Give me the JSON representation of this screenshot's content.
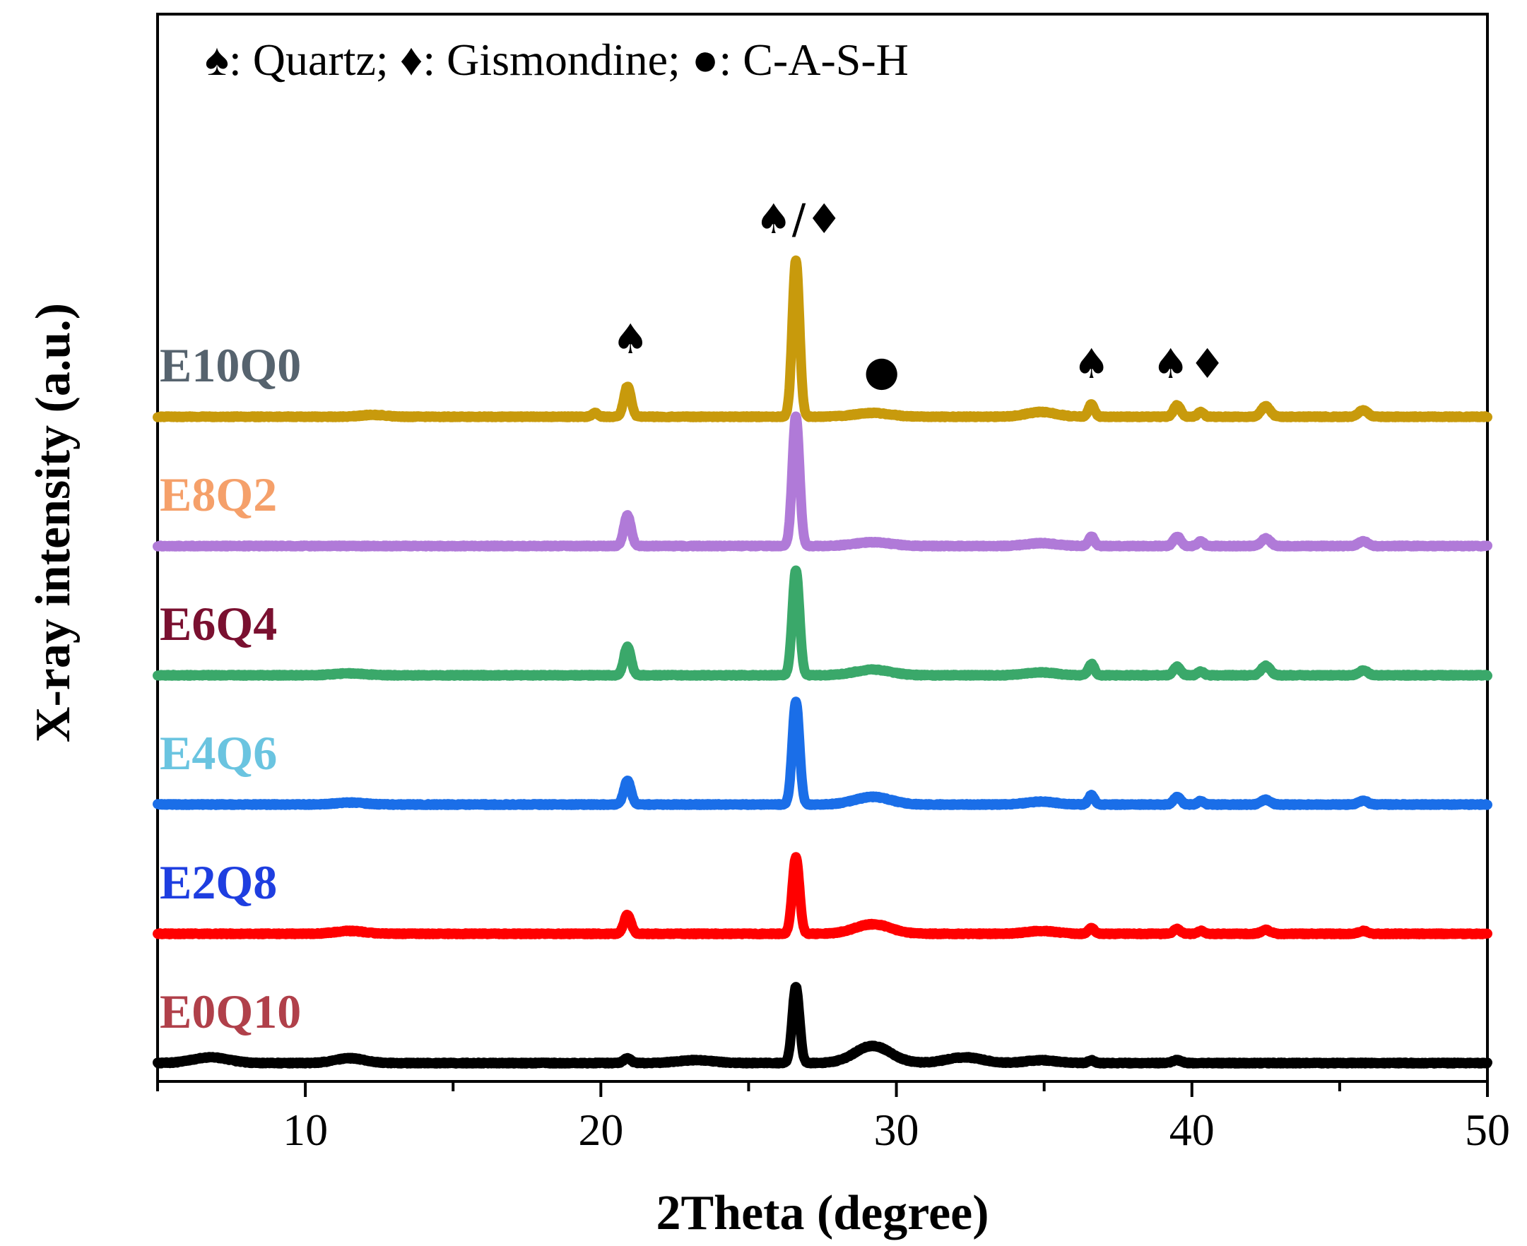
{
  "chart_data": {
    "type": "line",
    "title": "",
    "xlabel": "2Theta (degree)",
    "ylabel": "X-ray intensity (a.u.)",
    "xlim": [
      5,
      50
    ],
    "xticks": [
      10,
      20,
      30,
      40,
      50
    ],
    "xtick_labels": [
      "10",
      "20",
      "30",
      "40",
      "50"
    ],
    "y_ticks_shown": false,
    "legend_text": "♠: Quartz; ♦: Gismondine; ●: C-A-S-H",
    "legend_position": "top-left",
    "peak_markers": [
      {
        "symbol": "♠",
        "x": 21.0
      },
      {
        "symbol": "♠/♦",
        "x": 26.7
      },
      {
        "symbol": "●",
        "x": 29.5
      },
      {
        "symbol": "♠",
        "x": 36.6
      },
      {
        "symbol": "♠♦",
        "x": 39.9
      }
    ],
    "series": [
      {
        "name": "E0Q10",
        "label_color": "#b0404a",
        "line_color": "#000000",
        "offset": 0,
        "baseline": 6,
        "peak_scale": 0.5,
        "features": [
          [
            6.8,
            6,
            0.6
          ],
          [
            11.5,
            5,
            0.5
          ],
          [
            20.9,
            5,
            0.12
          ],
          [
            23.2,
            3,
            0.6
          ],
          [
            26.6,
            80,
            0.12
          ],
          [
            29.2,
            18,
            0.6
          ],
          [
            32.3,
            6,
            0.6
          ],
          [
            34.9,
            3,
            0.5
          ],
          [
            36.6,
            3,
            0.1
          ],
          [
            39.5,
            3,
            0.15
          ]
        ]
      },
      {
        "name": "E2Q8",
        "label_color": "#1e3ee0",
        "line_color": "#ff0000",
        "offset": 1,
        "baseline": 5,
        "peak_scale": 1.0,
        "features": [
          [
            11.5,
            3,
            0.5
          ],
          [
            20.9,
            20,
            0.12
          ],
          [
            26.6,
            80,
            0.12
          ],
          [
            29.2,
            10,
            0.6
          ],
          [
            34.9,
            3,
            0.5
          ],
          [
            36.6,
            6,
            0.1
          ],
          [
            39.5,
            5,
            0.12
          ],
          [
            40.3,
            3,
            0.1
          ],
          [
            42.5,
            4,
            0.15
          ],
          [
            45.8,
            3,
            0.15
          ]
        ]
      },
      {
        "name": "E4Q6",
        "label_color": "#6ac4e0",
        "line_color": "#1a6ee8",
        "offset": 2,
        "baseline": 5,
        "peak_scale": 1.0,
        "features": [
          [
            11.5,
            2,
            0.5
          ],
          [
            20.9,
            25,
            0.12
          ],
          [
            26.6,
            108,
            0.12
          ],
          [
            29.2,
            8,
            0.6
          ],
          [
            34.9,
            3,
            0.5
          ],
          [
            36.6,
            10,
            0.1
          ],
          [
            39.5,
            8,
            0.12
          ],
          [
            40.3,
            4,
            0.1
          ],
          [
            42.5,
            5,
            0.15
          ],
          [
            45.8,
            4,
            0.15
          ]
        ]
      },
      {
        "name": "E6Q4",
        "label_color": "#7a1030",
        "line_color": "#3aa86a",
        "offset": 3,
        "baseline": 5,
        "peak_scale": 1.0,
        "features": [
          [
            11.5,
            2,
            0.5
          ],
          [
            20.9,
            30,
            0.12
          ],
          [
            26.6,
            110,
            0.12
          ],
          [
            29.2,
            6,
            0.6
          ],
          [
            34.9,
            3,
            0.5
          ],
          [
            36.6,
            12,
            0.1
          ],
          [
            39.5,
            9,
            0.12
          ],
          [
            40.3,
            4,
            0.1
          ],
          [
            42.5,
            10,
            0.15
          ],
          [
            45.8,
            5,
            0.15
          ]
        ]
      },
      {
        "name": "E8Q2",
        "label_color": "#f5a06a",
        "line_color": "#b07ad8",
        "offset": 4,
        "baseline": 5,
        "peak_scale": 1.0,
        "features": [
          [
            20.9,
            32,
            0.12
          ],
          [
            26.6,
            136,
            0.12
          ],
          [
            29.2,
            4,
            0.6
          ],
          [
            34.9,
            3,
            0.5
          ],
          [
            36.6,
            10,
            0.1
          ],
          [
            39.5,
            10,
            0.12
          ],
          [
            40.3,
            5,
            0.1
          ],
          [
            42.5,
            8,
            0.15
          ],
          [
            45.8,
            5,
            0.15
          ]
        ]
      },
      {
        "name": "E10Q0",
        "label_color": "#56636e",
        "line_color": "#c89a0c",
        "offset": 5,
        "baseline": 5,
        "peak_scale": 1.0,
        "features": [
          [
            12.3,
            2,
            0.4
          ],
          [
            19.8,
            4,
            0.1
          ],
          [
            20.9,
            32,
            0.12
          ],
          [
            26.6,
            164,
            0.12
          ],
          [
            29.2,
            4,
            0.6
          ],
          [
            34.9,
            5,
            0.5
          ],
          [
            36.6,
            13,
            0.1
          ],
          [
            39.5,
            12,
            0.12
          ],
          [
            40.3,
            5,
            0.1
          ],
          [
            42.5,
            11,
            0.15
          ],
          [
            45.8,
            7,
            0.15
          ]
        ]
      }
    ]
  }
}
